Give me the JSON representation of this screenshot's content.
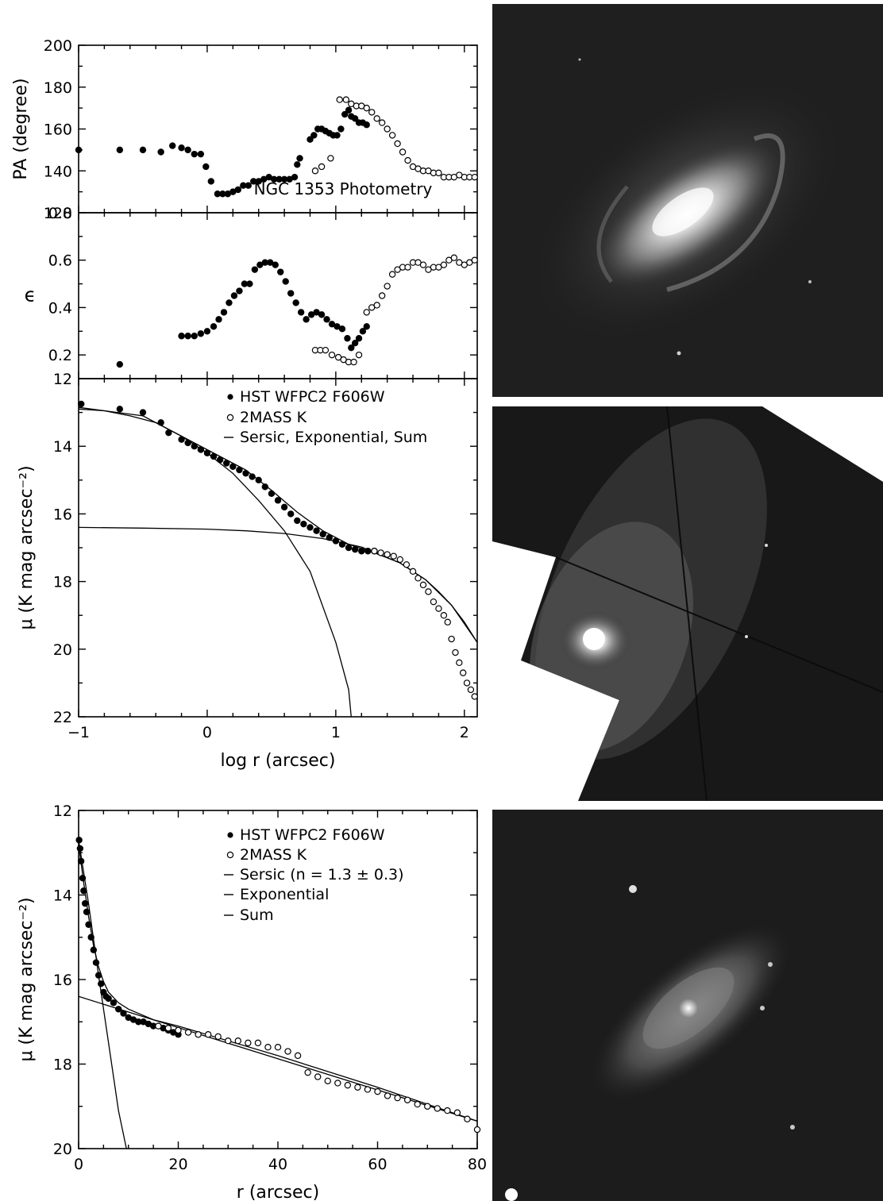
{
  "chart_data": [
    {
      "type": "scatter",
      "panel": "position-angle",
      "ylabel": "PA  (degree)",
      "annotation": "NGC 1353 Photometry",
      "xlim": [
        -1,
        2.1
      ],
      "ylim": [
        120,
        200
      ],
      "yticks": [
        "120",
        "140",
        "160",
        "180",
        "200"
      ],
      "series": [
        {
          "name": "HST WFPC2 F606W",
          "marker": "filled-circle",
          "x": [
            -1.0,
            -0.68,
            -0.5,
            -0.36,
            -0.27,
            -0.2,
            -0.15,
            -0.1,
            -0.05,
            -0.01,
            0.03,
            0.08,
            0.12,
            0.16,
            0.2,
            0.24,
            0.28,
            0.32,
            0.36,
            0.4,
            0.44,
            0.48,
            0.52,
            0.56,
            0.6,
            0.64,
            0.68,
            0.7,
            0.72,
            0.8,
            0.83,
            0.86,
            0.89,
            0.92,
            0.95,
            0.98,
            1.01,
            1.04,
            1.07,
            1.1,
            1.12,
            1.15,
            1.18,
            1.21,
            1.24
          ],
          "y": [
            150,
            150,
            150,
            149,
            152,
            151,
            150,
            148,
            148,
            142,
            135,
            129,
            129,
            129,
            130,
            131,
            133,
            133,
            135,
            135,
            136,
            137,
            136,
            136,
            136,
            136,
            137,
            143,
            146,
            155,
            157,
            160,
            160,
            159,
            158,
            157,
            157,
            160,
            167,
            169,
            166,
            165,
            163,
            163,
            162
          ]
        },
        {
          "name": "2MASS K",
          "marker": "open-circle",
          "x": [
            0.84,
            0.89,
            0.96,
            1.03,
            1.08,
            1.12,
            1.16,
            1.2,
            1.24,
            1.28,
            1.32,
            1.36,
            1.4,
            1.44,
            1.48,
            1.52,
            1.56,
            1.6,
            1.64,
            1.68,
            1.72,
            1.76,
            1.8,
            1.84,
            1.88,
            1.92,
            1.96,
            2.0,
            2.04,
            2.08
          ],
          "y": [
            140,
            142,
            146,
            174,
            174,
            172,
            171,
            171,
            170,
            168,
            165,
            163,
            160,
            157,
            153,
            149,
            145,
            142,
            141,
            140,
            140,
            139,
            139,
            137,
            137,
            137,
            138,
            137,
            137,
            137
          ]
        }
      ]
    },
    {
      "type": "scatter",
      "panel": "ellipticity",
      "ylabel": "ϵ",
      "xlim": [
        -1,
        2.1
      ],
      "ylim": [
        0.1,
        0.8
      ],
      "yticks": [
        "0.2",
        "0.4",
        "0.6",
        "0.8"
      ],
      "series": [
        {
          "name": "HST WFPC2 F606W",
          "marker": "filled-circle",
          "x": [
            -0.68,
            -0.2,
            -0.15,
            -0.1,
            -0.05,
            0.0,
            0.05,
            0.09,
            0.13,
            0.17,
            0.21,
            0.25,
            0.29,
            0.33,
            0.37,
            0.41,
            0.45,
            0.49,
            0.53,
            0.57,
            0.61,
            0.65,
            0.69,
            0.73,
            0.77,
            0.81,
            0.85,
            0.89,
            0.93,
            0.97,
            1.01,
            1.05,
            1.09,
            1.12,
            1.15,
            1.18,
            1.21,
            1.24
          ],
          "y": [
            0.16,
            0.28,
            0.28,
            0.28,
            0.29,
            0.3,
            0.32,
            0.35,
            0.38,
            0.42,
            0.45,
            0.47,
            0.5,
            0.5,
            0.56,
            0.58,
            0.59,
            0.59,
            0.58,
            0.55,
            0.51,
            0.46,
            0.42,
            0.38,
            0.35,
            0.37,
            0.38,
            0.37,
            0.35,
            0.33,
            0.32,
            0.31,
            0.27,
            0.23,
            0.25,
            0.27,
            0.3,
            0.32
          ]
        },
        {
          "name": "2MASS K",
          "marker": "open-circle",
          "x": [
            0.84,
            0.88,
            0.92,
            0.97,
            1.02,
            1.06,
            1.1,
            1.14,
            1.18,
            1.24,
            1.28,
            1.32,
            1.36,
            1.4,
            1.44,
            1.48,
            1.52,
            1.56,
            1.6,
            1.64,
            1.68,
            1.72,
            1.76,
            1.8,
            1.84,
            1.88,
            1.92,
            1.96,
            2.0,
            2.04,
            2.08
          ],
          "y": [
            0.22,
            0.22,
            0.22,
            0.2,
            0.19,
            0.18,
            0.17,
            0.17,
            0.2,
            0.38,
            0.4,
            0.41,
            0.45,
            0.49,
            0.54,
            0.56,
            0.57,
            0.57,
            0.59,
            0.59,
            0.58,
            0.56,
            0.57,
            0.57,
            0.58,
            0.6,
            0.61,
            0.59,
            0.58,
            0.59,
            0.6
          ]
        }
      ]
    },
    {
      "type": "scatter",
      "panel": "profile-log",
      "xlabel": "log r (arcsec)",
      "ylabel": "μ (K mag arcsec⁻²)",
      "xlim": [
        -1,
        2.1
      ],
      "ylim": [
        22,
        12
      ],
      "xticks": [
        "−1",
        "0",
        "1",
        "2"
      ],
      "yticks": [
        "14",
        "16",
        "18",
        "20",
        "22"
      ],
      "legend": [
        "HST WFPC2 F606W",
        "2MASS K",
        "Sersic, Exponential, Sum"
      ],
      "series": [
        {
          "name": "HST WFPC2 F606W",
          "marker": "filled-circle",
          "x": [
            -0.98,
            -0.68,
            -0.5,
            -0.36,
            -0.3,
            -0.2,
            -0.15,
            -0.1,
            -0.05,
            0.0,
            0.05,
            0.1,
            0.15,
            0.2,
            0.25,
            0.3,
            0.35,
            0.4,
            0.45,
            0.5,
            0.55,
            0.6,
            0.65,
            0.7,
            0.75,
            0.8,
            0.85,
            0.9,
            0.95,
            1.0,
            1.05,
            1.1,
            1.15,
            1.2,
            1.25,
            1.3
          ],
          "y": [
            12.75,
            12.9,
            13.0,
            13.3,
            13.6,
            13.8,
            13.9,
            14.0,
            14.1,
            14.2,
            14.3,
            14.4,
            14.5,
            14.6,
            14.7,
            14.8,
            14.9,
            15.0,
            15.2,
            15.4,
            15.6,
            15.8,
            16.0,
            16.2,
            16.3,
            16.4,
            16.5,
            16.6,
            16.7,
            16.8,
            16.9,
            17.0,
            17.05,
            17.1,
            17.1,
            17.1
          ]
        },
        {
          "name": "2MASS K",
          "marker": "open-circle",
          "x": [
            1.3,
            1.35,
            1.4,
            1.45,
            1.5,
            1.55,
            1.6,
            1.64,
            1.68,
            1.72,
            1.76,
            1.8,
            1.84,
            1.87,
            1.9,
            1.93,
            1.96,
            1.99,
            2.02,
            2.05,
            2.08
          ],
          "y": [
            17.1,
            17.15,
            17.2,
            17.25,
            17.35,
            17.5,
            17.7,
            17.9,
            18.1,
            18.3,
            18.6,
            18.8,
            19.0,
            19.2,
            19.7,
            20.1,
            20.4,
            20.7,
            21.0,
            21.2,
            21.4
          ]
        }
      ],
      "model_lines": [
        {
          "name": "Sersic",
          "x": [
            -1.0,
            -0.8,
            -0.6,
            -0.4,
            -0.2,
            0.0,
            0.2,
            0.4,
            0.6,
            0.8,
            1.0,
            1.1,
            1.12
          ],
          "y": [
            12.9,
            12.95,
            13.1,
            13.3,
            13.7,
            14.2,
            14.8,
            15.6,
            16.5,
            17.7,
            19.8,
            21.2,
            22.0
          ]
        },
        {
          "name": "Exponential",
          "x": [
            -1.0,
            -0.5,
            0.0,
            0.3,
            0.6,
            0.9,
            1.2,
            1.5,
            1.7,
            1.8,
            1.9,
            2.0,
            2.1
          ],
          "y": [
            16.4,
            16.42,
            16.45,
            16.5,
            16.58,
            16.73,
            16.98,
            17.45,
            17.95,
            18.3,
            18.7,
            19.2,
            19.8
          ]
        },
        {
          "name": "Sum",
          "x": [
            -1.0,
            -0.5,
            0.0,
            0.3,
            0.5,
            0.7,
            0.9,
            1.1,
            1.3,
            1.5,
            1.7,
            1.9,
            2.1
          ],
          "y": [
            12.85,
            13.1,
            14.1,
            14.7,
            15.3,
            15.95,
            16.5,
            16.9,
            17.15,
            17.45,
            17.95,
            18.7,
            19.8
          ]
        }
      ]
    },
    {
      "type": "scatter",
      "panel": "profile-linear",
      "xlabel": "r (arcsec)",
      "ylabel": "μ (K mag arcsec⁻²)",
      "xlim": [
        0,
        80
      ],
      "ylim": [
        20,
        12
      ],
      "xticks": [
        "0",
        "20",
        "40",
        "60",
        "80"
      ],
      "yticks": [
        "12",
        "14",
        "16",
        "18",
        "20"
      ],
      "legend": [
        "HST WFPC2 F606W",
        "2MASS K",
        "Sersic (n = 1.3 ± 0.3)",
        "Exponential",
        "Sum"
      ],
      "series": [
        {
          "name": "HST WFPC2 F606W",
          "marker": "filled-circle",
          "x": [
            0.1,
            0.3,
            0.5,
            0.8,
            1.0,
            1.3,
            1.6,
            2.0,
            2.5,
            3.0,
            3.5,
            4.0,
            4.5,
            5.0,
            5.5,
            6.0,
            7.0,
            8.0,
            9.0,
            10.0,
            11.0,
            12.0,
            13.0,
            14.0,
            15.0,
            16.0,
            17.0,
            18.0,
            19.0,
            20.0
          ],
          "y": [
            12.7,
            12.9,
            13.2,
            13.6,
            13.9,
            14.2,
            14.4,
            14.7,
            15.0,
            15.3,
            15.6,
            15.9,
            16.1,
            16.3,
            16.4,
            16.45,
            16.55,
            16.7,
            16.8,
            16.9,
            16.95,
            17.0,
            17.0,
            17.05,
            17.1,
            17.1,
            17.15,
            17.2,
            17.25,
            17.3
          ]
        },
        {
          "name": "2MASS K",
          "marker": "open-circle",
          "x": [
            16,
            18,
            20,
            22,
            24,
            26,
            28,
            30,
            32,
            34,
            36,
            38,
            40,
            42,
            44,
            46,
            48,
            50,
            52,
            54,
            56,
            58,
            60,
            62,
            64,
            66,
            68,
            70,
            72,
            74,
            76,
            78,
            80
          ],
          "y": [
            17.1,
            17.15,
            17.2,
            17.25,
            17.3,
            17.3,
            17.35,
            17.45,
            17.45,
            17.5,
            17.5,
            17.6,
            17.6,
            17.7,
            17.8,
            18.2,
            18.3,
            18.4,
            18.45,
            18.5,
            18.55,
            18.6,
            18.65,
            18.75,
            18.8,
            18.85,
            18.95,
            19.0,
            19.05,
            19.1,
            19.15,
            19.3,
            19.55
          ]
        }
      ],
      "model_lines": [
        {
          "name": "Sersic",
          "x": [
            0,
            2,
            4,
            6,
            8,
            9.6
          ],
          "y": [
            12.7,
            14.2,
            15.9,
            17.5,
            19.1,
            20.0
          ]
        },
        {
          "name": "Exponential",
          "x": [
            0,
            80
          ],
          "y": [
            16.4,
            19.35
          ]
        },
        {
          "name": "Sum",
          "x": [
            0,
            1,
            2,
            3,
            4,
            5,
            6,
            8,
            10,
            15,
            20,
            40,
            60,
            80
          ],
          "y": [
            12.8,
            13.7,
            14.5,
            15.2,
            15.7,
            16.05,
            16.3,
            16.55,
            16.7,
            16.95,
            17.1,
            17.8,
            18.55,
            19.35
          ]
        }
      ]
    }
  ],
  "images": [
    {
      "name": "galaxy-image-top",
      "description": "grayscale galaxy image"
    },
    {
      "name": "galaxy-image-middle",
      "description": "grayscale mosaic galaxy image"
    },
    {
      "name": "galaxy-image-bottom",
      "description": "grayscale near-infrared galaxy image"
    }
  ]
}
